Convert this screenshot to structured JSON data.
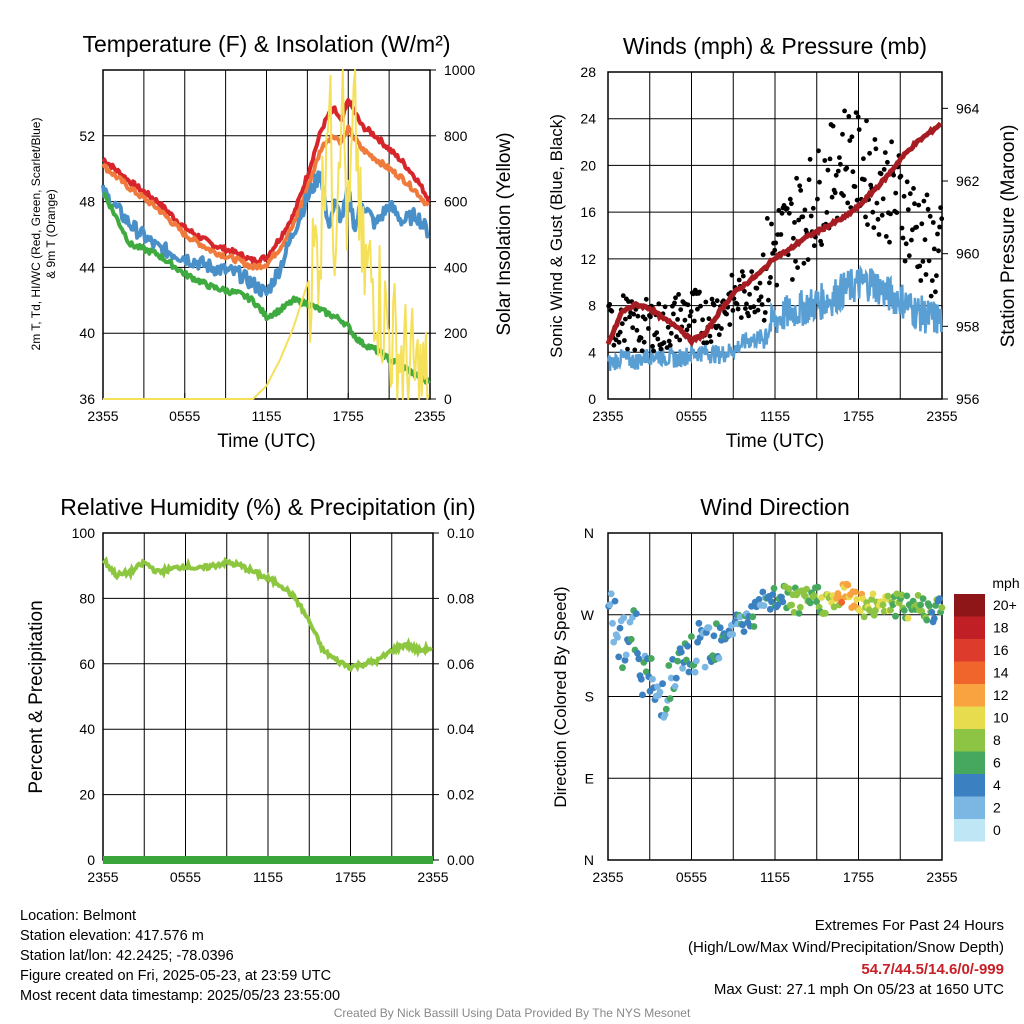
{
  "colors": {
    "temp_red": "#d7262b",
    "temp_orange": "#f07a3c",
    "temp_blue": "#4a90c8",
    "temp_green": "#3faa3f",
    "insolation": "#f5e05a",
    "rh": "#8dc63f",
    "precip": "#3aa53a",
    "wind": "#5a9fd4",
    "gust": "#000000",
    "pressure": "#a51c22",
    "extremes": "#c81f26"
  },
  "tick_labels_x": [
    "2355",
    "0555",
    "1155",
    "1755",
    "2355"
  ],
  "colorbar": {
    "unit": "mph",
    "labels": [
      "20+",
      "18",
      "16",
      "14",
      "12",
      "10",
      "8",
      "6",
      "4",
      "2",
      "0"
    ],
    "colors": [
      "#8e1619",
      "#c01f26",
      "#dd3b2c",
      "#f0652c",
      "#f9a340",
      "#e6dc4e",
      "#8ec444",
      "#46a85f",
      "#3b80c0",
      "#7bb7e2",
      "#bfe6f5"
    ]
  },
  "chart_data": [
    {
      "type": "line",
      "title": "Temperature (F) & Insolation (W/m²)",
      "xlabel": "Time (UTC)",
      "ylabel_left_lines": [
        "2m T, Td, HI/WC (Red, Green, Scarlet/Blue)",
        "& 9m T (Orange)"
      ],
      "ylabel_right": "Solar Insolation (Yellow)",
      "ylim": [
        36,
        56
      ],
      "yticks": [
        36,
        40,
        44,
        48,
        52
      ],
      "y2lim": [
        0,
        1000
      ],
      "y2ticks": [
        0,
        200,
        400,
        600,
        800,
        1000
      ],
      "x_hours": [
        0,
        2,
        4,
        6,
        8,
        10,
        11,
        12,
        13,
        14,
        15,
        16,
        16.5,
        17,
        17.5,
        18,
        18.5,
        19,
        20,
        21,
        22,
        23,
        24
      ],
      "series": [
        {
          "name": "2m T",
          "color_key": "temp_red",
          "axis": "left",
          "values": [
            50.6,
            49.2,
            48.0,
            46.4,
            45.4,
            44.8,
            44.4,
            44.6,
            45.8,
            47.2,
            49.6,
            52.3,
            53.2,
            53.6,
            52.8,
            54.2,
            53.4,
            52.6,
            52.0,
            51.2,
            50.4,
            49.4,
            48.0
          ]
        },
        {
          "name": "9m T",
          "color_key": "temp_orange",
          "axis": "left",
          "values": [
            50.2,
            48.8,
            47.6,
            46.0,
            45.0,
            44.4,
            44.0,
            44.2,
            45.2,
            46.6,
            48.8,
            51.2,
            51.8,
            52.0,
            51.6,
            52.4,
            51.8,
            51.2,
            50.6,
            50.0,
            49.4,
            48.6,
            47.6
          ]
        },
        {
          "name": "HI/WC",
          "color_key": "temp_blue",
          "axis": "left",
          "values": [
            48.6,
            46.6,
            45.2,
            44.6,
            44.0,
            43.6,
            43.0,
            42.4,
            44.0,
            46.2,
            48.2,
            49.8,
            46.5,
            47.8,
            47.0,
            48.6,
            46.4,
            48.0,
            46.6,
            47.8,
            46.8,
            47.2,
            46.0
          ]
        },
        {
          "name": "2m Td",
          "color_key": "temp_green",
          "axis": "left",
          "values": [
            48.6,
            45.4,
            44.8,
            43.6,
            42.8,
            42.4,
            42.0,
            41.0,
            41.4,
            42.0,
            41.8,
            41.4,
            41.2,
            41.0,
            40.8,
            40.4,
            39.8,
            39.4,
            39.0,
            38.4,
            38.0,
            37.4,
            37.0
          ]
        },
        {
          "name": "Insolation",
          "color_key": "insolation",
          "axis": "right",
          "values": [
            0,
            0,
            0,
            0,
            0,
            0,
            0,
            40,
            120,
            220,
            350,
            500,
            960,
            520,
            980,
            480,
            900,
            400,
            350,
            200,
            120,
            60,
            30
          ]
        }
      ]
    },
    {
      "type": "line",
      "title": "Winds (mph) & Pressure (mb)",
      "xlabel": "Time (UTC)",
      "ylabel_left": "Sonic Wind & Gust (Blue, Black)",
      "ylabel_right": "Station Pressure (Maroon)",
      "ylim": [
        0,
        28
      ],
      "yticks": [
        0,
        4,
        8,
        12,
        16,
        20,
        24,
        28
      ],
      "y2lim": [
        956,
        965
      ],
      "y2ticks": [
        956,
        958,
        960,
        962,
        964
      ],
      "x_hours": [
        0,
        1,
        2,
        3,
        4,
        5,
        6,
        7,
        8,
        9,
        10,
        11,
        12,
        13,
        14,
        15,
        16,
        17,
        18,
        19,
        20,
        21,
        22,
        23,
        24
      ],
      "series": [
        {
          "name": "Sonic Wind",
          "color_key": "wind",
          "axis": "left",
          "values": [
            3.0,
            3.5,
            3.2,
            3.8,
            3.6,
            3.4,
            3.9,
            4.0,
            3.8,
            4.2,
            5.0,
            5.2,
            6.8,
            7.4,
            7.8,
            8.2,
            8.6,
            9.4,
            9.8,
            10.0,
            9.0,
            8.6,
            7.6,
            7.0,
            6.8
          ]
        },
        {
          "name": "Gust",
          "color_key": "gust",
          "axis": "left",
          "values": [
            6.0,
            7.0,
            5.8,
            6.5,
            6.0,
            7.0,
            7.5,
            6.8,
            7.6,
            8.5,
            9.0,
            10.0,
            13.0,
            14.0,
            16.0,
            17.0,
            19.0,
            21.0,
            20.0,
            19.0,
            18.0,
            17.0,
            15.0,
            13.0,
            12.0
          ]
        },
        {
          "name": "Pressure",
          "color_key": "pressure",
          "axis": "right",
          "values": [
            957.5,
            958.4,
            958.6,
            958.5,
            958.2,
            958.0,
            957.6,
            957.8,
            958.4,
            958.9,
            959.2,
            959.5,
            959.9,
            960.1,
            960.4,
            960.6,
            960.8,
            961.0,
            961.3,
            961.7,
            962.1,
            962.6,
            963.0,
            963.3,
            963.6
          ]
        }
      ]
    },
    {
      "type": "line",
      "title": "Relative Humidity (%) & Precipitation (in)",
      "ylabel_left": "Percent & Precipitation",
      "ylim": [
        0,
        100
      ],
      "yticks": [
        0,
        20,
        40,
        60,
        80,
        100
      ],
      "y2lim": [
        0,
        0.1
      ],
      "y2ticks": [
        "0.00",
        "0.02",
        "0.04",
        "0.06",
        "0.08",
        "0.10"
      ],
      "x_hours": [
        0,
        1,
        2,
        3,
        4,
        5,
        6,
        7,
        8,
        9,
        10,
        11,
        12,
        13,
        14,
        15,
        16,
        17,
        18,
        19,
        20,
        21,
        22,
        23,
        24
      ],
      "series": [
        {
          "name": "RH",
          "color_key": "rh",
          "axis": "left",
          "values": [
            92,
            87,
            88,
            91,
            88,
            89,
            90,
            89,
            90,
            91,
            90,
            88,
            86,
            84,
            80,
            73,
            64,
            61,
            59,
            60,
            61,
            64,
            66,
            64,
            65
          ]
        },
        {
          "name": "Precipitation",
          "color_key": "precip",
          "axis": "right",
          "values": [
            0,
            0,
            0,
            0,
            0,
            0,
            0,
            0,
            0,
            0,
            0,
            0,
            0,
            0,
            0,
            0,
            0,
            0,
            0,
            0,
            0,
            0,
            0,
            0,
            0
          ]
        }
      ]
    },
    {
      "type": "scatter",
      "title": "Wind Direction",
      "ylabel_left": "Direction (Colored By Speed)",
      "yticks": [
        "N",
        "E",
        "S",
        "W",
        "N"
      ],
      "ylim": [
        0,
        360
      ],
      "x_hours": [
        0,
        0.5,
        1,
        1.5,
        2,
        2.5,
        3,
        3.5,
        4,
        4.5,
        5,
        5.5,
        6,
        6.5,
        7,
        7.5,
        8,
        8.5,
        9,
        9.5,
        10,
        10.5,
        11,
        11.5,
        12,
        12.5,
        13,
        13.5,
        14,
        14.5,
        15,
        15.5,
        16,
        16.5,
        17,
        17.5,
        18,
        18.5,
        19,
        19.5,
        20,
        20.5,
        21,
        21.5,
        22,
        22.5,
        23,
        23.5,
        24
      ],
      "direction_deg": [
        260,
        268,
        240,
        255,
        245,
        210,
        200,
        175,
        185,
        195,
        205,
        215,
        225,
        230,
        240,
        245,
        250,
        252,
        258,
        262,
        265,
        270,
        280,
        285,
        285,
        290,
        288,
        285,
        282,
        286,
        290,
        284,
        282,
        288,
        292,
        290,
        286,
        280,
        278,
        284,
        288,
        282,
        280,
        276,
        284,
        280,
        278,
        276,
        282
      ],
      "speed_mph": [
        2,
        3,
        4,
        3,
        4,
        5,
        4,
        3,
        4,
        4,
        5,
        4,
        4,
        5,
        3,
        5,
        4,
        4,
        3,
        4,
        4,
        5,
        3,
        4,
        5,
        6,
        7,
        6,
        7,
        8,
        7,
        8,
        9,
        10,
        12,
        13,
        11,
        9,
        8,
        9,
        10,
        8,
        7,
        8,
        6,
        7,
        6,
        5,
        6
      ]
    }
  ],
  "info_left": [
    "Location: Belmont",
    "Station elevation: 417.576 m",
    "Station lat/lon: 42.2425; -78.0396",
    "Figure created on Fri, 2025-05-23, at 23:59 UTC",
    "Most recent data timestamp: 2025/05/23 23:55:00"
  ],
  "extremes": {
    "title": "Extremes For Past 24 Hours",
    "subtitle": "(High/Low/Max Wind/Precipitation/Snow Depth)",
    "values": "54.7/44.5/14.6/0/-999",
    "max_gust": "Max Gust: 27.1 mph On 05/23 at 1650 UTC"
  },
  "credit": "Created By Nick Bassill Using Data Provided By The NYS Mesonet"
}
